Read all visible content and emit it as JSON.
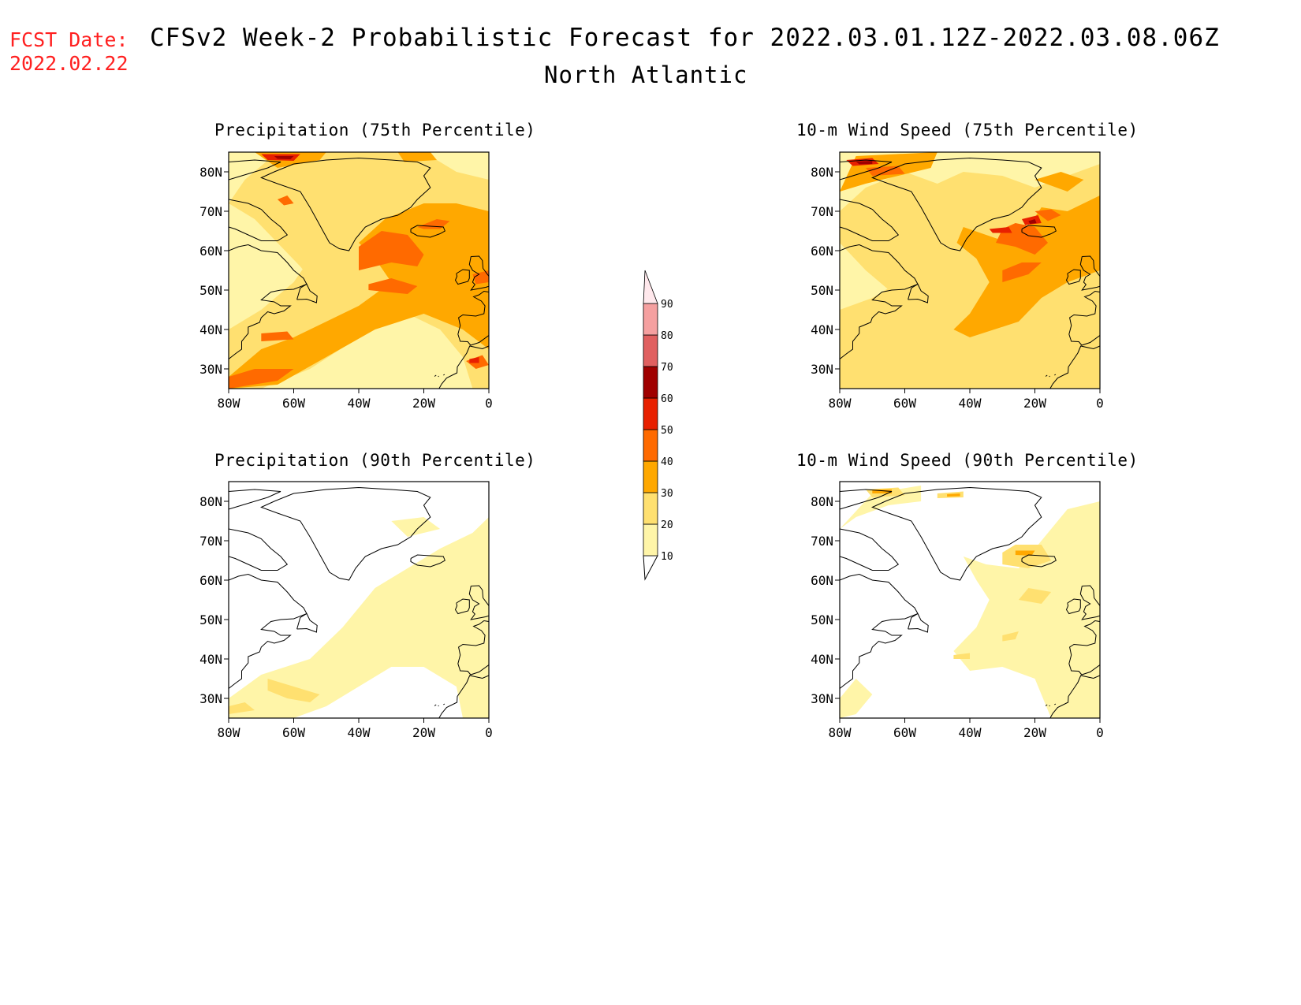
{
  "fcst_label": "FCST Date:",
  "fcst_date": "2022.02.22",
  "title": "CFSv2 Week-2 Probabilistic Forecast for 2022.03.01.12Z-2022.03.08.06Z",
  "subtitle": "North Atlantic",
  "colors": {
    "c10": "#fff5a8",
    "c20": "#ffe070",
    "c30": "#ffa800",
    "c40": "#ff6a00",
    "c50": "#e82000",
    "c60": "#a00000",
    "c70": "#e06060",
    "c80": "#f5a0a0",
    "c90": "#ffe8ec",
    "coast": "#000000"
  },
  "panels": [
    {
      "id": "p75",
      "title": "Precipitation (75th Percentile)"
    },
    {
      "id": "w75",
      "title": "10-m Wind Speed (75th Percentile)"
    },
    {
      "id": "p90",
      "title": "Precipitation (90th Percentile)"
    },
    {
      "id": "w90",
      "title": "10-m Wind Speed (90th Percentile)"
    }
  ],
  "lat_labels": [
    "80N",
    "70N",
    "60N",
    "50N",
    "40N",
    "30N"
  ],
  "lat_values": [
    80,
    70,
    60,
    50,
    40,
    30
  ],
  "lon_labels": [
    "80W",
    "60W",
    "40W",
    "20W",
    "0"
  ],
  "lon_values": [
    -80,
    -60,
    -40,
    -20,
    0
  ],
  "lat_range": [
    25,
    85
  ],
  "lon_range": [
    -80,
    0
  ],
  "colorbar": {
    "labels": [
      "10",
      "20",
      "30",
      "40",
      "50",
      "60",
      "70",
      "80",
      "90"
    ],
    "values": [
      10,
      20,
      30,
      40,
      50,
      60,
      70,
      80,
      90
    ]
  }
}
